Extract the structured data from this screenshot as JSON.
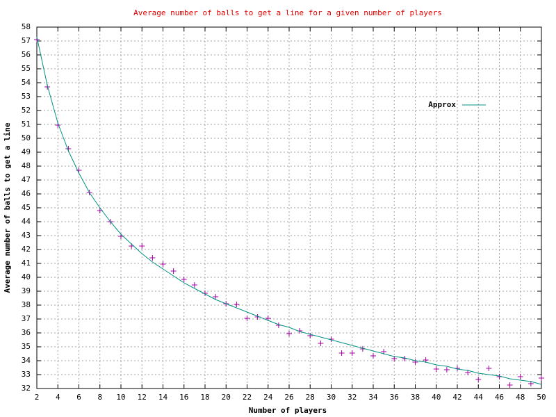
{
  "chart_data": {
    "type": "line",
    "title": "Average number of balls to get a line for a given number of players",
    "title_color": "#e00000",
    "x_label": "Number of players",
    "y_label": "Average number of balls to get a line",
    "x": [
      2,
      3,
      4,
      5,
      6,
      7,
      8,
      9,
      10,
      11,
      12,
      13,
      14,
      15,
      16,
      17,
      18,
      19,
      20,
      21,
      22,
      23,
      24,
      25,
      26,
      27,
      28,
      29,
      30,
      31,
      32,
      33,
      34,
      35,
      36,
      37,
      38,
      39,
      40,
      41,
      42,
      43,
      44,
      45,
      46,
      47,
      48,
      49,
      50
    ],
    "series": [
      {
        "style": "points",
        "color": "#a000a0",
        "values": [
          57.1,
          53.7,
          50.95,
          49.25,
          47.7,
          46.1,
          44.8,
          44.0,
          42.95,
          42.25,
          42.25,
          41.4,
          40.95,
          40.45,
          39.85,
          39.45,
          38.85,
          38.6,
          38.1,
          38.05,
          37.05,
          37.15,
          37.05,
          36.55,
          35.95,
          36.15,
          35.8,
          35.25,
          35.55,
          34.55,
          34.55,
          34.85,
          34.35,
          34.65,
          34.15,
          34.15,
          33.9,
          34.05,
          33.4,
          33.35,
          33.45,
          33.15,
          32.65,
          33.45,
          32.85,
          32.25,
          32.85,
          32.35,
          32.75
        ]
      },
      {
        "name": "Approx",
        "style": "line",
        "color": "#009080",
        "values": [
          57.3,
          53.8,
          51.1,
          49.1,
          47.5,
          46.1,
          45.0,
          44.0,
          43.1,
          42.4,
          41.7,
          41.1,
          40.6,
          40.1,
          39.6,
          39.2,
          38.8,
          38.4,
          38.1,
          37.8,
          37.5,
          37.2,
          36.9,
          36.6,
          36.4,
          36.1,
          35.9,
          35.7,
          35.5,
          35.3,
          35.1,
          34.9,
          34.7,
          34.5,
          34.3,
          34.2,
          34.0,
          33.9,
          33.7,
          33.6,
          33.4,
          33.3,
          33.1,
          33.0,
          32.9,
          32.7,
          32.6,
          32.5,
          32.3
        ]
      }
    ],
    "xlim": [
      2,
      50
    ],
    "ylim": [
      32,
      58
    ],
    "xticks": [
      2,
      4,
      6,
      8,
      10,
      12,
      14,
      16,
      18,
      20,
      22,
      24,
      26,
      28,
      30,
      32,
      34,
      36,
      38,
      40,
      42,
      44,
      46,
      48,
      50
    ],
    "yticks": [
      32,
      33,
      34,
      35,
      36,
      37,
      38,
      39,
      40,
      41,
      42,
      43,
      44,
      45,
      46,
      47,
      48,
      49,
      50,
      51,
      52,
      53,
      54,
      55,
      56,
      57,
      58
    ],
    "grid": true,
    "legend": "upper right"
  }
}
